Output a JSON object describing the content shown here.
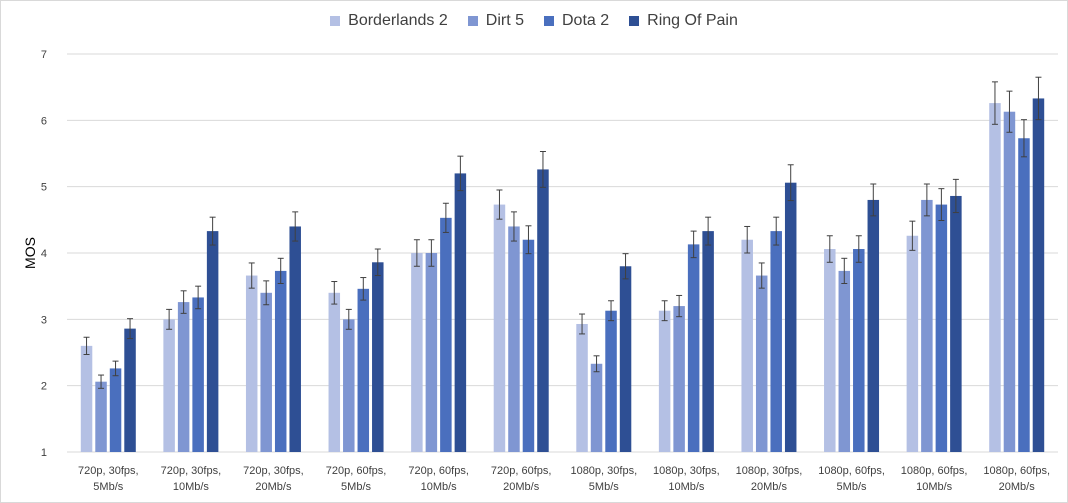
{
  "colors": {
    "Borderlands 2": "#b4c0e4",
    "Dirt 5": "#7f96d2",
    "Dota 2": "#4a6fbe",
    "Ring Of Pain": "#2e4f94",
    "gridline": "#d9d9d9",
    "errorbar": "#404040"
  },
  "chart_data": {
    "type": "bar",
    "title": "",
    "xlabel": "",
    "ylabel": "MOS",
    "ylim": [
      1,
      7
    ],
    "yticks": [
      1,
      2,
      3,
      4,
      5,
      6,
      7
    ],
    "grid": "horizontal",
    "legend_position": "top",
    "categories": [
      [
        "720p, 30fps,",
        "5Mb/s"
      ],
      [
        "720p, 30fps,",
        "10Mb/s"
      ],
      [
        "720p, 30fps,",
        "20Mb/s"
      ],
      [
        "720p, 60fps,",
        "5Mb/s"
      ],
      [
        "720p, 60fps,",
        "10Mb/s"
      ],
      [
        "720p, 60fps,",
        "20Mb/s"
      ],
      [
        "1080p, 30fps,",
        "5Mb/s"
      ],
      [
        "1080p, 30fps,",
        "10Mb/s"
      ],
      [
        "1080p, 30fps,",
        "20Mb/s"
      ],
      [
        "1080p, 60fps,",
        "5Mb/s"
      ],
      [
        "1080p, 60fps,",
        "10Mb/s"
      ],
      [
        "1080p, 60fps,",
        "20Mb/s"
      ]
    ],
    "series": [
      {
        "name": "Borderlands 2",
        "values": [
          2.6,
          3.0,
          3.66,
          3.4,
          4.0,
          4.73,
          2.93,
          3.13,
          4.2,
          4.06,
          4.26,
          6.26
        ],
        "error": [
          0.13,
          0.15,
          0.19,
          0.17,
          0.2,
          0.22,
          0.15,
          0.15,
          0.2,
          0.2,
          0.22,
          0.32
        ]
      },
      {
        "name": "Dirt 5",
        "values": [
          2.06,
          3.26,
          3.4,
          3.0,
          4.0,
          4.4,
          2.33,
          3.2,
          3.66,
          3.73,
          4.8,
          6.13
        ],
        "error": [
          0.1,
          0.17,
          0.18,
          0.15,
          0.2,
          0.22,
          0.12,
          0.16,
          0.19,
          0.19,
          0.24,
          0.31
        ]
      },
      {
        "name": "Dota 2",
        "values": [
          2.26,
          3.33,
          3.73,
          3.46,
          4.53,
          4.2,
          3.13,
          4.13,
          4.33,
          4.06,
          4.73,
          5.73
        ],
        "error": [
          0.11,
          0.17,
          0.19,
          0.17,
          0.22,
          0.21,
          0.15,
          0.2,
          0.21,
          0.2,
          0.24,
          0.28
        ]
      },
      {
        "name": "Ring Of Pain",
        "values": [
          2.86,
          4.33,
          4.4,
          3.86,
          5.2,
          5.26,
          3.8,
          4.33,
          5.06,
          4.8,
          4.86,
          6.33
        ],
        "error": [
          0.15,
          0.21,
          0.22,
          0.2,
          0.26,
          0.27,
          0.19,
          0.21,
          0.27,
          0.24,
          0.25,
          0.32
        ]
      }
    ]
  }
}
